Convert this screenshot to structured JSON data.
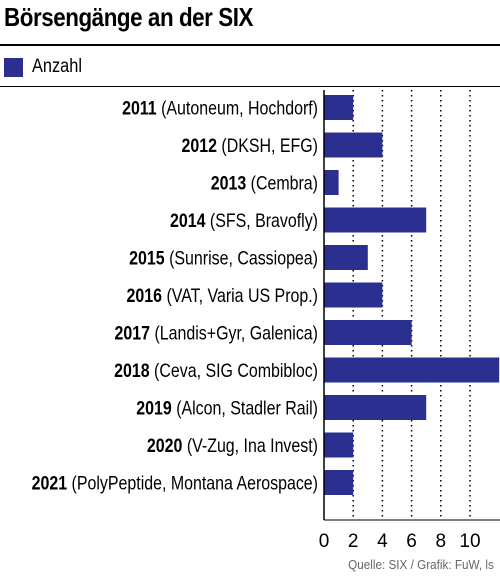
{
  "title": "Börsengänge an der SIX",
  "source": "Quelle: SIX / Grafik: FuW, ls",
  "colors": {
    "bar": "#2b2f8f",
    "grid": "#000000"
  },
  "chart_data": {
    "type": "bar",
    "orientation": "horizontal",
    "title": "Börsengänge an der SIX",
    "categories": [
      {
        "year": "2011",
        "detail": "(Autoneum, Hochdorf)"
      },
      {
        "year": "2012",
        "detail": "(DKSH, EFG)"
      },
      {
        "year": "2013",
        "detail": "(Cembra)"
      },
      {
        "year": "2014",
        "detail": "(SFS, Bravofly)"
      },
      {
        "year": "2015",
        "detail": "(Sunrise, Cassiopea)"
      },
      {
        "year": "2016",
        "detail": "(VAT, Varia US Prop.)"
      },
      {
        "year": "2017",
        "detail": "(Landis+Gyr, Galenica)"
      },
      {
        "year": "2018",
        "detail": "(Ceva, SIG Combibloc)"
      },
      {
        "year": "2019",
        "detail": "(Alcon, Stadler Rail)"
      },
      {
        "year": "2020",
        "detail": "(V-Zug, Ina Invest)"
      },
      {
        "year": "2021",
        "detail": "(PolyPeptide, Montana Aerospace)"
      }
    ],
    "series": [
      {
        "name": "Anzahl",
        "values": [
          2,
          4,
          1,
          7,
          3,
          4,
          6,
          12,
          7,
          2,
          2
        ]
      }
    ],
    "xticks": [
      "0",
      "2",
      "4",
      "6",
      "8",
      "10"
    ],
    "xlim": [
      0,
      12
    ],
    "grid": "vertical dotted",
    "legend": "top-left"
  }
}
